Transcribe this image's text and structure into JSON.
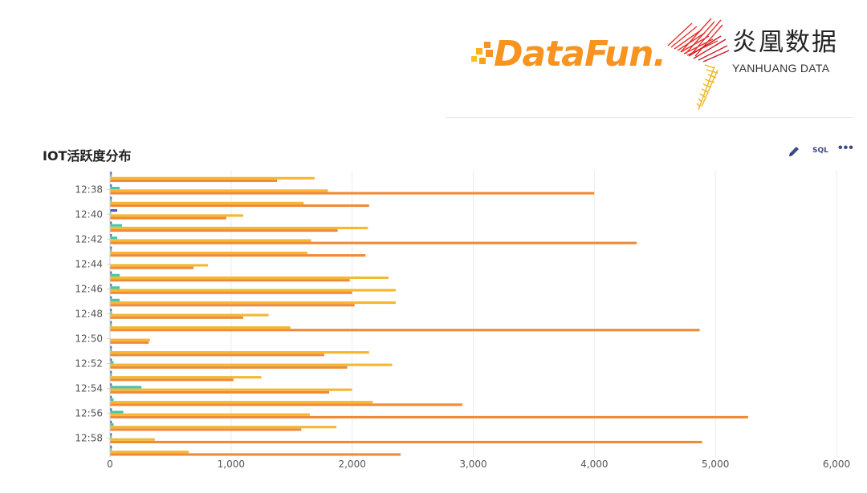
{
  "logos": {
    "datafun": "DataFun.",
    "yanhuang_cn": "炎凰数据",
    "yanhuang_en": "YANHUANG DATA"
  },
  "toolbar": {
    "sql_label": "SQL",
    "more_label": "•••"
  },
  "colors": {
    "series": [
      "#4a55b8",
      "#3fc7a8",
      "#f5b631",
      "#ef8a36"
    ],
    "axis": "#cfcfcf",
    "grid": "#ececec",
    "label": "#555555"
  },
  "chart_data": {
    "type": "bar",
    "orientation": "horizontal",
    "title": "IOT活跃度分布",
    "xlim": [
      0,
      6000
    ],
    "x_ticks": [
      "0",
      "1,000",
      "2,000",
      "3,000",
      "4,000",
      "5,000",
      "6,000"
    ],
    "x_tick_values": [
      0,
      1000,
      2000,
      3000,
      4000,
      5000,
      6000
    ],
    "y_tick_labels": [
      "12:38",
      "12:40",
      "12:42",
      "12:44",
      "12:46",
      "12:48",
      "12:50",
      "12:52",
      "12:54",
      "12:56",
      "12:58"
    ],
    "grid": true,
    "categories": [
      "12:37",
      "12:38",
      "12:39",
      "12:40",
      "12:41",
      "12:42",
      "12:43",
      "12:44",
      "12:45",
      "12:46",
      "12:47",
      "12:48",
      "12:49",
      "12:50",
      "12:51",
      "12:52",
      "12:53",
      "12:54",
      "12:55",
      "12:56",
      "12:57",
      "12:58",
      "12:59"
    ],
    "series": [
      {
        "values": [
          15,
          15,
          15,
          60,
          15,
          15,
          15,
          0,
          15,
          15,
          15,
          15,
          15,
          0,
          15,
          15,
          15,
          15,
          15,
          15,
          15,
          15,
          15
        ]
      },
      {
        "values": [
          15,
          80,
          15,
          10,
          100,
          60,
          15,
          0,
          80,
          80,
          80,
          15,
          15,
          0,
          15,
          30,
          15,
          260,
          30,
          110,
          30,
          15,
          15
        ]
      },
      {
        "values": [
          1690,
          1800,
          1600,
          1100,
          2130,
          1660,
          1630,
          810,
          2300,
          2360,
          2360,
          1310,
          1490,
          330,
          2140,
          2330,
          1250,
          2000,
          2170,
          1650,
          1870,
          370,
          650
        ]
      },
      {
        "values": [
          1380,
          4000,
          2140,
          960,
          1880,
          4350,
          2110,
          690,
          1980,
          2000,
          2020,
          1100,
          4870,
          320,
          1770,
          1960,
          1020,
          1810,
          2910,
          5270,
          1580,
          4890,
          2400
        ]
      }
    ]
  }
}
